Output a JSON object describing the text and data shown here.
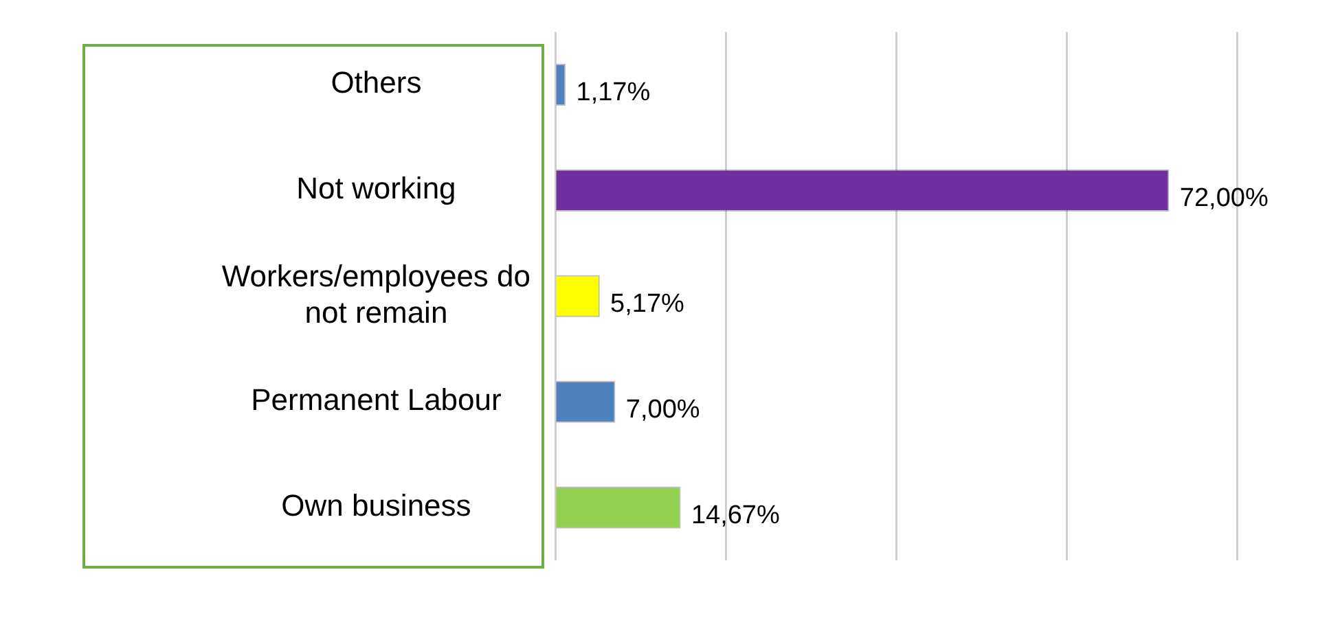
{
  "chart_data": {
    "type": "bar",
    "orientation": "horizontal",
    "categories": [
      "Others",
      "Not working",
      "Workers/employees do not remain",
      "Permanent Labour",
      "Own business"
    ],
    "values": [
      1.17,
      72.0,
      5.17,
      7.0,
      14.67
    ],
    "colors": [
      "#4f81bd",
      "#7030a0",
      "#ffff00",
      "#4f81bd",
      "#92d050"
    ],
    "value_labels": [
      "1,17%",
      "72,00%",
      "5,17%",
      "7,00%",
      "14,67%"
    ],
    "xlim": [
      0,
      80
    ],
    "xticks": [
      {
        "value": 0,
        "label": null
      },
      {
        "value": 20,
        "label": null
      },
      {
        "value": 40,
        "label": null
      },
      {
        "value": 60,
        "label": null
      },
      {
        "value": 80,
        "label": null
      }
    ],
    "grid": "x",
    "tick_labels": "y",
    "legend": false
  }
}
